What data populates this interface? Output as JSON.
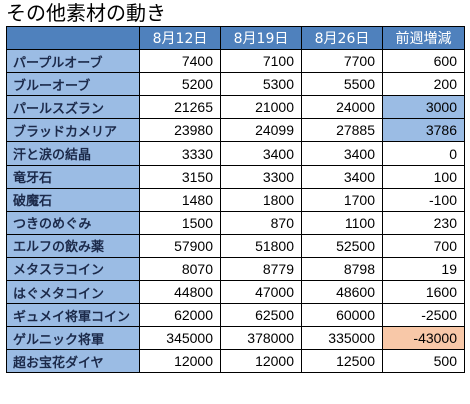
{
  "title": "その他素材の動き",
  "headers": [
    "8月12日",
    "8月19日",
    "8月26日",
    "前週増減"
  ],
  "rows": [
    {
      "name": "パープルオーブ",
      "v1": "7400",
      "v2": "7100",
      "v3": "7700",
      "diff": "600",
      "hl": ""
    },
    {
      "name": "ブルーオーブ",
      "v1": "5200",
      "v2": "5300",
      "v3": "5500",
      "diff": "200",
      "hl": ""
    },
    {
      "name": "パールスズラン",
      "v1": "21265",
      "v2": "21000",
      "v3": "24000",
      "diff": "3000",
      "hl": "blue"
    },
    {
      "name": "ブラッドカメリア",
      "v1": "23980",
      "v2": "24099",
      "v3": "27885",
      "diff": "3786",
      "hl": "blue"
    },
    {
      "name": "汗と涙の結晶",
      "v1": "3330",
      "v2": "3400",
      "v3": "3400",
      "diff": "0",
      "hl": ""
    },
    {
      "name": "竜牙石",
      "v1": "3150",
      "v2": "3300",
      "v3": "3400",
      "diff": "100",
      "hl": ""
    },
    {
      "name": "破魔石",
      "v1": "1480",
      "v2": "1800",
      "v3": "1700",
      "diff": "-100",
      "hl": ""
    },
    {
      "name": "つきのめぐみ",
      "v1": "1500",
      "v2": "870",
      "v3": "1100",
      "diff": "230",
      "hl": ""
    },
    {
      "name": "エルフの飲み薬",
      "v1": "57900",
      "v2": "51800",
      "v3": "52500",
      "diff": "700",
      "hl": ""
    },
    {
      "name": "メタスラコイン",
      "v1": "8070",
      "v2": "8779",
      "v3": "8798",
      "diff": "19",
      "hl": ""
    },
    {
      "name": "はぐメタコイン",
      "v1": "44800",
      "v2": "47000",
      "v3": "48600",
      "diff": "1600",
      "hl": ""
    },
    {
      "name": "ギュメイ将軍コイン",
      "v1": "62000",
      "v2": "62500",
      "v3": "60000",
      "diff": "-2500",
      "hl": ""
    },
    {
      "name": "ゲルニック将軍",
      "v1": "345000",
      "v2": "378000",
      "v3": "335000",
      "diff": "-43000",
      "hl": "orange"
    },
    {
      "name": "超お宝花ダイヤ",
      "v1": "12000",
      "v2": "12000",
      "v3": "12500",
      "diff": "500",
      "hl": ""
    }
  ],
  "colors": {
    "header": "#4f81bd",
    "label": "#9bbce4",
    "highlight_up": "#9bbce4",
    "highlight_down": "#f8c8a8"
  }
}
